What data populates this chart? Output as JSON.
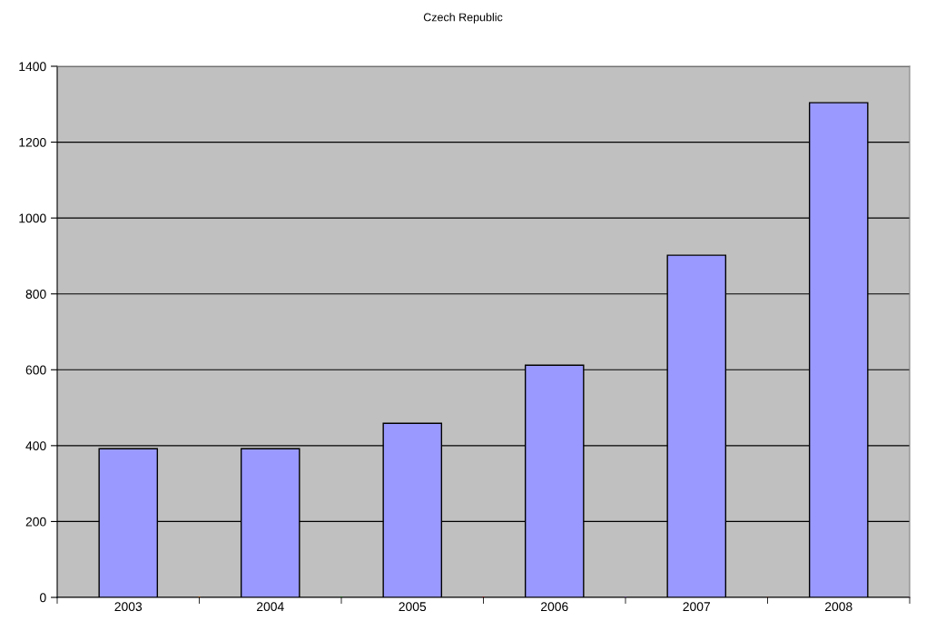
{
  "chart_data": {
    "type": "bar",
    "title": "Czech Republic",
    "categories": [
      "2003",
      "2004",
      "2005",
      "2006",
      "2007",
      "2008"
    ],
    "values": [
      392,
      392,
      459,
      612,
      902,
      1304
    ],
    "color": "#9999ff",
    "ylim": [
      0,
      1400
    ],
    "yticks": [
      0,
      200,
      400,
      600,
      800,
      1000,
      1200,
      1400
    ],
    "grid": "y"
  }
}
